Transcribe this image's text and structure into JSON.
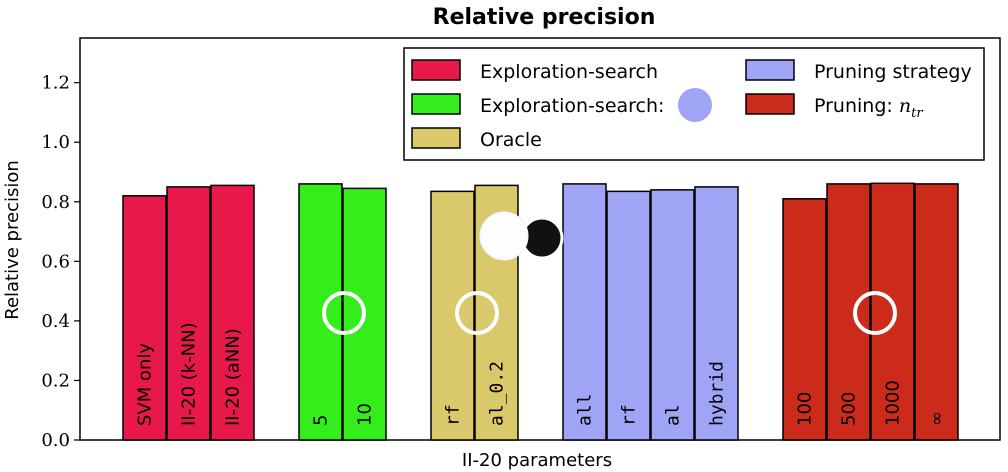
{
  "chart_data": {
    "type": "bar",
    "title": "Relative precision",
    "xlabel": "II-20 parameters",
    "ylabel": "Relative precision",
    "ylim": [
      0,
      1.35
    ],
    "yticks": [
      "0.0",
      "0.2",
      "0.4",
      "0.6",
      "0.8",
      "1.0",
      "1.2"
    ],
    "grid": false,
    "legend_position": "top-right",
    "legend": [
      {
        "label": "Exploration-search",
        "color": "#e8194a"
      },
      {
        "label": "Exploration-search:",
        "color": "#33ee1a"
      },
      {
        "label": "Oracle",
        "color": "#d9c96a"
      },
      {
        "label": "Pruning strategy",
        "color": "#a0a4f5"
      },
      {
        "label": "Pruning: ",
        "label_math": "n",
        "label_sub": "tr",
        "color": "#cc2b1b"
      }
    ],
    "groups": [
      {
        "series": "Exploration-search",
        "color": "#e8194a",
        "bars": [
          {
            "label": "SVM only",
            "value": 0.82,
            "mono": false
          },
          {
            "label": "II-20 (k-NN)",
            "value": 0.85,
            "mono": false
          },
          {
            "label": "II-20 (aNN)",
            "value": 0.855,
            "mono": false
          }
        ]
      },
      {
        "series": "Exploration-search:",
        "color": "#33ee1a",
        "bars": [
          {
            "label": "5",
            "value": 0.86,
            "mono": false
          },
          {
            "label": "10",
            "value": 0.845,
            "mono": false
          }
        ]
      },
      {
        "series": "Oracle",
        "color": "#d9c96a",
        "bars": [
          {
            "label": "rf",
            "value": 0.835,
            "mono": true
          },
          {
            "label": "al_0.2",
            "value": 0.855,
            "mono": true
          }
        ]
      },
      {
        "series": "Pruning strategy",
        "color": "#a0a4f5",
        "bars": [
          {
            "label": "all",
            "value": 0.86,
            "mono": true
          },
          {
            "label": "rf",
            "value": 0.835,
            "mono": true
          },
          {
            "label": "al",
            "value": 0.84,
            "mono": true
          },
          {
            "label": "hybrid",
            "value": 0.85,
            "mono": true
          }
        ]
      },
      {
        "series": "Pruning: n_tr",
        "color": "#cc2b1b",
        "bars": [
          {
            "label": "100",
            "value": 0.81,
            "mono": false
          },
          {
            "label": "500",
            "value": 0.86,
            "mono": false
          },
          {
            "label": "1000",
            "value": 0.862,
            "mono": false
          },
          {
            "label": "∞",
            "value": 0.86,
            "mono": false
          }
        ]
      }
    ]
  }
}
